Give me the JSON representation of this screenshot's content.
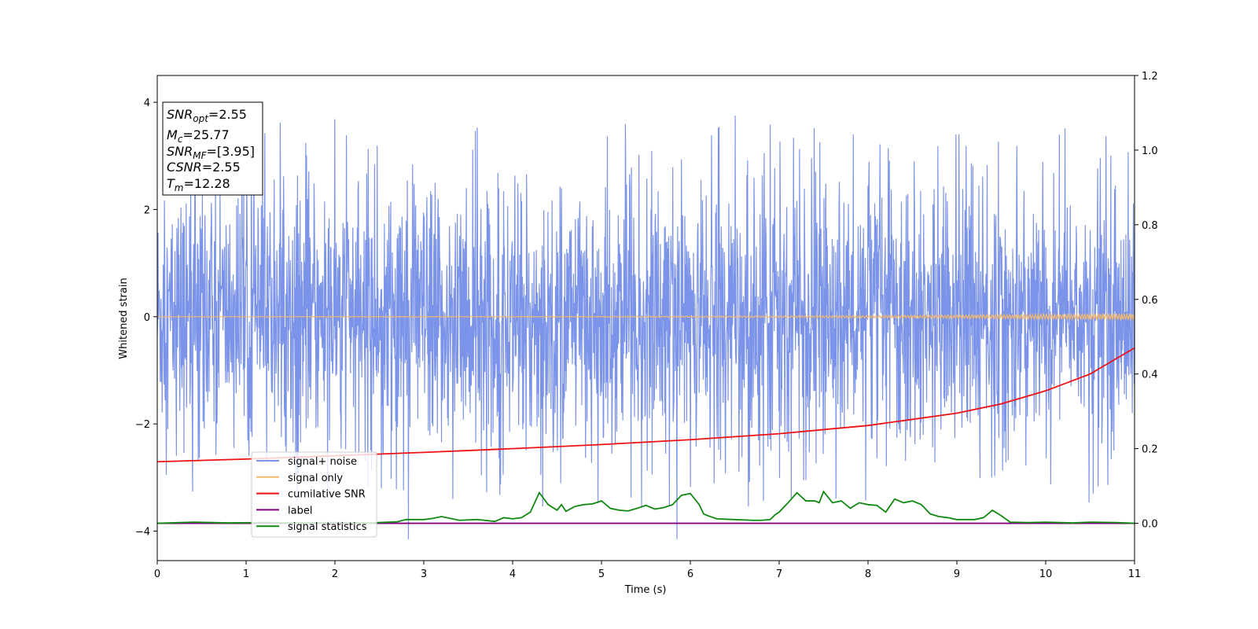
{
  "chart_data": {
    "type": "line",
    "title": "",
    "xlabel": "Time (s)",
    "ylabel": "Whitened strain",
    "xlim": [
      0,
      11
    ],
    "ylim": [
      -4.55,
      4.5
    ],
    "y2lim": [
      -0.1,
      1.2
    ],
    "x_ticks": [
      0,
      1,
      2,
      3,
      4,
      5,
      6,
      7,
      8,
      9,
      10,
      11
    ],
    "y_ticks": [
      -4,
      -2,
      0,
      2,
      4
    ],
    "y2_ticks": [
      "0.0",
      "0.2",
      "0.4",
      "0.6",
      "0.8",
      "1.0",
      "1.2"
    ],
    "grid": false,
    "legend_position": "lower-left",
    "annotation": [
      {
        "main": "SNR",
        "sub": "opt",
        "value": "=2.55"
      },
      {
        "main": "M",
        "sub": "c",
        "value": "=25.77"
      },
      {
        "main": "SNR",
        "sub": "MF",
        "value": "=[3.95]"
      },
      {
        "main": "CSNR",
        "sub": "",
        "value": "=2.55"
      },
      {
        "main": "T",
        "sub": "m",
        "value": "=12.28"
      }
    ],
    "series": [
      {
        "name": "signal+ noise",
        "color": "#7b93e8",
        "axis": "left",
        "kind": "noise",
        "envelope_upper": 1.5,
        "envelope_lower": -1.5,
        "max": 3.75,
        "min": -4.15
      },
      {
        "name": "signal only",
        "color": "#f5b96b",
        "axis": "left",
        "kind": "chirp",
        "amplitude_start": 0.0,
        "amplitude_end": 0.06
      },
      {
        "name": "cumilative SNR",
        "color": "#ee1111",
        "axis": "right",
        "x": [
          0,
          1,
          2,
          3,
          4,
          5,
          6,
          7,
          8,
          9,
          9.5,
          10,
          10.5,
          11
        ],
        "y": [
          0.165,
          0.172,
          0.181,
          0.19,
          0.2,
          0.211,
          0.224,
          0.24,
          0.262,
          0.295,
          0.32,
          0.355,
          0.4,
          0.47
        ]
      },
      {
        "name": "label",
        "color": "#800080",
        "axis": "right",
        "x": [
          0,
          11
        ],
        "y": [
          0.0,
          0.0
        ]
      },
      {
        "name": "signal statistics",
        "color": "#118811",
        "axis": "right",
        "x": [
          0,
          0.4,
          0.8,
          1.2,
          1.6,
          2.0,
          2.4,
          2.7,
          2.8,
          3.0,
          3.1,
          3.2,
          3.4,
          3.6,
          3.8,
          3.9,
          4.0,
          4.1,
          4.2,
          4.3,
          4.4,
          4.5,
          4.55,
          4.6,
          4.7,
          4.8,
          4.9,
          5.0,
          5.1,
          5.2,
          5.3,
          5.4,
          5.5,
          5.6,
          5.7,
          5.8,
          5.9,
          6.0,
          6.1,
          6.15,
          6.2,
          6.3,
          6.5,
          6.7,
          6.8,
          6.9,
          6.95,
          7.0,
          7.1,
          7.2,
          7.3,
          7.4,
          7.45,
          7.5,
          7.6,
          7.7,
          7.8,
          7.9,
          8.0,
          8.1,
          8.2,
          8.3,
          8.4,
          8.5,
          8.6,
          8.7,
          8.8,
          8.9,
          9.0,
          9.2,
          9.3,
          9.4,
          9.5,
          9.6,
          9.8,
          10.0,
          10.3,
          10.5,
          10.8,
          11.0
        ],
        "y": [
          0.0,
          0.003,
          0.001,
          0.002,
          0.001,
          0.002,
          0.001,
          0.004,
          0.01,
          0.01,
          0.013,
          0.018,
          0.008,
          0.01,
          0.005,
          0.015,
          0.012,
          0.015,
          0.03,
          0.082,
          0.05,
          0.035,
          0.05,
          0.032,
          0.045,
          0.05,
          0.052,
          0.06,
          0.04,
          0.035,
          0.033,
          0.04,
          0.048,
          0.038,
          0.042,
          0.05,
          0.075,
          0.08,
          0.05,
          0.025,
          0.02,
          0.012,
          0.01,
          0.008,
          0.008,
          0.01,
          0.022,
          0.03,
          0.055,
          0.082,
          0.06,
          0.06,
          0.055,
          0.085,
          0.055,
          0.06,
          0.04,
          0.055,
          0.05,
          0.048,
          0.03,
          0.065,
          0.055,
          0.06,
          0.05,
          0.025,
          0.018,
          0.015,
          0.01,
          0.01,
          0.015,
          0.035,
          0.02,
          0.003,
          0.002,
          0.003,
          0.001,
          0.003,
          0.002,
          0.0
        ]
      }
    ]
  }
}
